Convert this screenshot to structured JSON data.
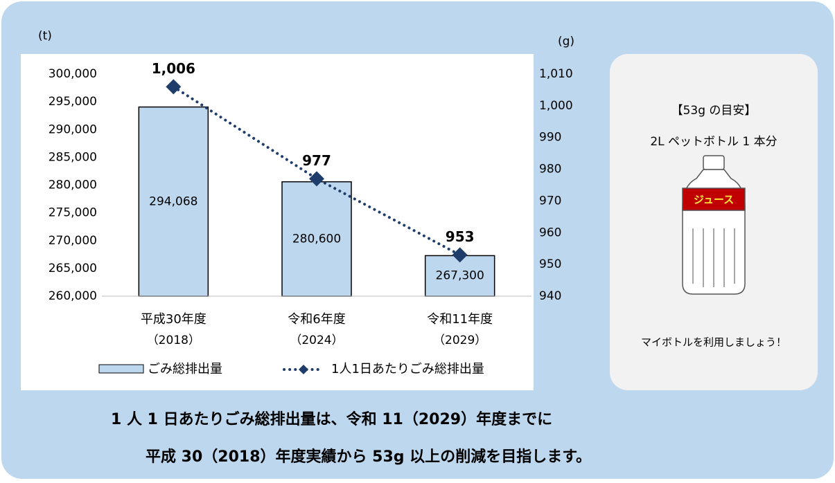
{
  "chart_data": {
    "type": "bar_line",
    "categories": [
      "平成30年度",
      "令和6年度",
      "令和11年度"
    ],
    "category_sublabels": [
      "（2018）",
      "（2024）",
      "（2029）"
    ],
    "ylabel": "(t)",
    "y2label": "(g)",
    "ylim": [
      260000,
      300000
    ],
    "yticks": [
      {
        "value": 260000,
        "label": "260,000"
      },
      {
        "value": 265000,
        "label": "265,000"
      },
      {
        "value": 270000,
        "label": "270,000"
      },
      {
        "value": 275000,
        "label": "275,000"
      },
      {
        "value": 280000,
        "label": "280,000"
      },
      {
        "value": 285000,
        "label": "285,000"
      },
      {
        "value": 290000,
        "label": "290,000"
      },
      {
        "value": 295000,
        "label": "295,000"
      },
      {
        "value": 300000,
        "label": "300,000"
      }
    ],
    "y2lim": [
      940,
      1010
    ],
    "y2ticks": [
      940,
      950,
      960,
      970,
      980,
      990,
      {
        "value": 1000,
        "label": "1,000"
      },
      {
        "value": 1010,
        "label": "1,010"
      }
    ],
    "series": [
      {
        "name": "ごみ総排出量",
        "type": "bar",
        "color": "#bdd7ee",
        "values": [
          294068,
          280600,
          267300
        ],
        "value_labels": [
          "294,068",
          "280,600",
          "267,300"
        ]
      },
      {
        "name": "1人1日あたりごみ総排出量",
        "type": "line",
        "axis": "y2",
        "color": "#1f3d6b",
        "values": [
          1006,
          977,
          953
        ],
        "value_labels": [
          "1,006",
          "977",
          "953"
        ]
      }
    ]
  },
  "panel": {
    "title": "【53g の目安】",
    "subtitle": "2L ペットボトル 1 本分",
    "bottle_label": "ジュース",
    "footer": "マイボトルを利用しましょう！"
  },
  "message": [
    "1 人 1 日あたりごみ総排出量は、令和 11（2029）年度までに",
    "平成 30（2018）年度実績から 53g 以上の削減を目指します。"
  ]
}
